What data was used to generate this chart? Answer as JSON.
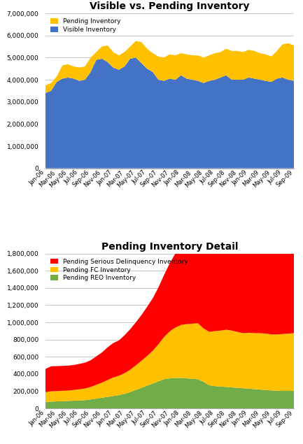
{
  "title1": "Visible vs. Pending Inventory",
  "title2": "Pending Inventory Detail",
  "x_labels": [
    "Jan-06",
    "Mar-06",
    "May-06",
    "Jul-06",
    "Sep-06",
    "Nov-06",
    "Jan-07",
    "Mar-07",
    "May-07",
    "Jul-07",
    "Sep-07",
    "Nov-07",
    "Jan-08",
    "Mar-08",
    "May-08",
    "Jul-08",
    "Sep-08",
    "Nov-08",
    "Jan-09",
    "Mar-09",
    "May-09",
    "Jul-09",
    "Sep-09"
  ],
  "visible_inventory": [
    3400000,
    3500000,
    3900000,
    4050000,
    4100000,
    4050000,
    3950000,
    4000000,
    4350000,
    4900000,
    4950000,
    4800000,
    4550000,
    4450000,
    4600000,
    4950000,
    5000000,
    4750000,
    4500000,
    4350000,
    4000000,
    3950000,
    4050000,
    4000000,
    4200000,
    4050000,
    4000000,
    3950000,
    3850000,
    3950000,
    4000000,
    4100000,
    4200000,
    4000000,
    4000000,
    4000000,
    4100000,
    4050000,
    4000000,
    3950000,
    3900000,
    4050000,
    4100000,
    4000000,
    3950000
  ],
  "pending_inventory_top": [
    3750000,
    3850000,
    4150000,
    4650000,
    4700000,
    4600000,
    4550000,
    4600000,
    5000000,
    5250000,
    5500000,
    5550000,
    5250000,
    5100000,
    5250000,
    5500000,
    5750000,
    5700000,
    5400000,
    5200000,
    5050000,
    5000000,
    5150000,
    5100000,
    5200000,
    5150000,
    5100000,
    5100000,
    5000000,
    5100000,
    5200000,
    5250000,
    5400000,
    5300000,
    5300000,
    5250000,
    5350000,
    5300000,
    5200000,
    5150000,
    5050000,
    5300000,
    5600000,
    5650000,
    5550000
  ],
  "pending_sd": [
    270000,
    290000,
    290000,
    290000,
    290000,
    290000,
    295000,
    300000,
    310000,
    330000,
    350000,
    380000,
    400000,
    410000,
    440000,
    470000,
    500000,
    530000,
    570000,
    610000,
    660000,
    720000,
    790000,
    860000,
    920000,
    970000,
    1020000,
    1070000,
    1010000,
    1010000,
    1030000,
    1060000,
    1090000,
    1120000,
    1140000,
    1170000,
    1210000,
    1260000,
    1310000,
    1360000,
    1430000,
    1490000,
    1540000,
    1590000,
    1630000
  ],
  "pending_fc": [
    115000,
    120000,
    120000,
    120000,
    120000,
    125000,
    130000,
    135000,
    145000,
    160000,
    175000,
    195000,
    215000,
    225000,
    240000,
    260000,
    285000,
    315000,
    345000,
    380000,
    430000,
    490000,
    545000,
    585000,
    615000,
    630000,
    640000,
    650000,
    620000,
    620000,
    640000,
    650000,
    665000,
    660000,
    650000,
    640000,
    650000,
    650000,
    655000,
    655000,
    650000,
    655000,
    660000,
    665000,
    670000
  ],
  "pending_reo": [
    75000,
    80000,
    82000,
    85000,
    88000,
    90000,
    93000,
    97000,
    105000,
    115000,
    125000,
    135000,
    145000,
    155000,
    170000,
    190000,
    215000,
    240000,
    265000,
    290000,
    315000,
    340000,
    350000,
    355000,
    355000,
    350000,
    345000,
    340000,
    310000,
    270000,
    260000,
    255000,
    250000,
    245000,
    240000,
    235000,
    230000,
    225000,
    220000,
    215000,
    210000,
    205000,
    205000,
    205000,
    205000
  ],
  "color_visible": "#4472C4",
  "color_pending": "#FFC000",
  "color_sd": "#FF0000",
  "color_fc": "#FFC000",
  "color_reo": "#70AD47",
  "bg_color": "#FFFFFF",
  "grid_color": "#BBBBBB",
  "chart1_ylim": [
    0,
    7000000
  ],
  "chart1_yticks": [
    0,
    1000000,
    2000000,
    3000000,
    4000000,
    5000000,
    6000000,
    7000000
  ],
  "chart2_ylim": [
    0,
    1800000
  ],
  "chart2_yticks": [
    0,
    200000,
    400000,
    600000,
    800000,
    1000000,
    1200000,
    1400000,
    1600000,
    1800000
  ]
}
